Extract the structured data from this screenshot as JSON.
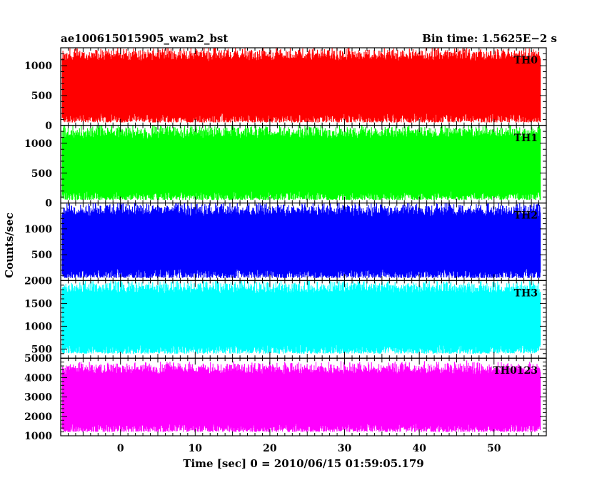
{
  "header": {
    "title": "ae100615015905_wam2_bst",
    "bin_time": "Bin time: 1.5625E−2 s"
  },
  "axes": {
    "ylabel": "Counts/sec",
    "xlabel": "Time [sec] 0 = 2010/06/15 01:59:05.179"
  },
  "chart_data": {
    "type": "line",
    "title": "ae100615015905_wam2_bst",
    "xlabel": "Time [sec] 0 = 2010/06/15 01:59:05.179",
    "ylabel": "Counts/sec",
    "xlim": [
      -8,
      57
    ],
    "x_ticks": [
      0,
      10,
      20,
      30,
      40,
      50
    ],
    "x_range_of_data": [
      -7.8,
      56.2
    ],
    "grid": false,
    "panels": [
      {
        "name": "TH0",
        "color": "#ff0000",
        "ylim": [
          0,
          1300
        ],
        "y_ticks": [
          0,
          500,
          1000
        ],
        "typical_min": 50,
        "typical_max": 1300,
        "mean": 600
      },
      {
        "name": "TH1",
        "color": "#00ff00",
        "ylim": [
          0,
          1300
        ],
        "y_ticks": [
          0,
          500,
          1000
        ],
        "typical_min": 50,
        "typical_max": 1300,
        "mean": 550
      },
      {
        "name": "TH2",
        "color": "#0000ff",
        "ylim": [
          0,
          1500
        ],
        "y_ticks": [
          500,
          1000
        ],
        "typical_min": 50,
        "typical_max": 1500,
        "mean": 700
      },
      {
        "name": "TH3",
        "color": "#00ffff",
        "ylim": [
          300,
          2000
        ],
        "y_ticks": [
          500,
          1000,
          1500,
          2000
        ],
        "typical_min": 400,
        "typical_max": 2000,
        "mean": 1050
      },
      {
        "name": "TH0123",
        "color": "#ff00ff",
        "ylim": [
          1000,
          5000
        ],
        "y_ticks": [
          1000,
          2000,
          3000,
          4000,
          5000
        ],
        "typical_min": 1200,
        "typical_max": 4800,
        "mean": 2700
      }
    ]
  }
}
